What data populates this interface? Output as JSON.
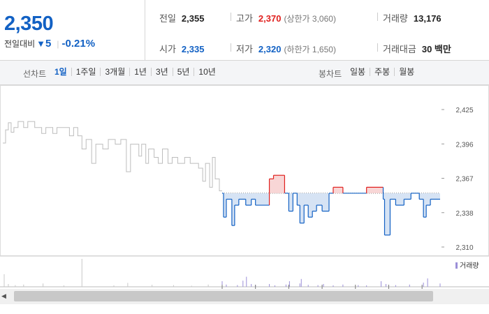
{
  "price": "2,350",
  "change": {
    "label": "전일대비",
    "direction": "down",
    "amount": "5",
    "percent": "-0.21%"
  },
  "stats": {
    "prev_close": {
      "label": "전일",
      "value": "2,355"
    },
    "high": {
      "label": "고가",
      "value": "2,370",
      "limit": "(상한가 3,060)"
    },
    "volume": {
      "label": "거래량",
      "value": "13,176"
    },
    "open": {
      "label": "시가",
      "value": "2,335"
    },
    "low": {
      "label": "저가",
      "value": "2,320",
      "limit": "(하한가 1,650)"
    },
    "turnover": {
      "label": "거래대금",
      "value": "30 백만"
    }
  },
  "line_chart_label": "선차트",
  "line_tabs": [
    "1일",
    "1주일",
    "3개월",
    "1년",
    "3년",
    "5년",
    "10년"
  ],
  "active_tab": "1일",
  "candle_chart_label": "봉차트",
  "candle_tabs": [
    "일봉",
    "주봉",
    "월봉"
  ],
  "volume_legend": "거래량",
  "colors": {
    "up": "#e0201e",
    "down": "#1261c4",
    "past": "#bdbdbd",
    "volume": "#9b8fd8"
  },
  "chart_data": {
    "type": "line",
    "y_ticks": [
      "2,425",
      "2,396",
      "2,367",
      "2,338",
      "2,310"
    ],
    "ylim": [
      2310,
      2425
    ],
    "reference": 2355,
    "xlim": [
      0,
      630
    ],
    "past": [
      [
        0,
        2397
      ],
      [
        4,
        2397
      ],
      [
        4,
        2408
      ],
      [
        8,
        2408
      ],
      [
        8,
        2414
      ],
      [
        12,
        2414
      ],
      [
        12,
        2406
      ],
      [
        16,
        2406
      ],
      [
        16,
        2410
      ],
      [
        22,
        2410
      ],
      [
        22,
        2415
      ],
      [
        30,
        2415
      ],
      [
        30,
        2410
      ],
      [
        36,
        2410
      ],
      [
        36,
        2415
      ],
      [
        46,
        2415
      ],
      [
        46,
        2410
      ],
      [
        56,
        2410
      ],
      [
        56,
        2405
      ],
      [
        62,
        2405
      ],
      [
        62,
        2410
      ],
      [
        72,
        2410
      ],
      [
        72,
        2405
      ],
      [
        78,
        2405
      ],
      [
        78,
        2410
      ],
      [
        96,
        2410
      ],
      [
        96,
        2403
      ],
      [
        102,
        2403
      ],
      [
        102,
        2410
      ],
      [
        108,
        2410
      ],
      [
        108,
        2403
      ],
      [
        114,
        2403
      ],
      [
        114,
        2392
      ],
      [
        120,
        2392
      ],
      [
        120,
        2400
      ],
      [
        128,
        2400
      ],
      [
        128,
        2380
      ],
      [
        134,
        2380
      ],
      [
        134,
        2396
      ],
      [
        144,
        2396
      ],
      [
        144,
        2392
      ],
      [
        152,
        2392
      ],
      [
        152,
        2400
      ],
      [
        162,
        2400
      ],
      [
        162,
        2396
      ],
      [
        170,
        2396
      ],
      [
        170,
        2400
      ],
      [
        178,
        2400
      ],
      [
        178,
        2373
      ],
      [
        184,
        2373
      ],
      [
        184,
        2396
      ],
      [
        196,
        2396
      ],
      [
        196,
        2386
      ],
      [
        200,
        2386
      ],
      [
        200,
        2396
      ],
      [
        206,
        2396
      ],
      [
        206,
        2380
      ],
      [
        210,
        2380
      ],
      [
        210,
        2392
      ],
      [
        218,
        2392
      ],
      [
        218,
        2385
      ],
      [
        224,
        2385
      ],
      [
        224,
        2380
      ],
      [
        230,
        2380
      ],
      [
        230,
        2392
      ],
      [
        238,
        2392
      ],
      [
        238,
        2380
      ],
      [
        244,
        2380
      ],
      [
        244,
        2385
      ],
      [
        252,
        2385
      ],
      [
        252,
        2380
      ],
      [
        262,
        2380
      ],
      [
        262,
        2385
      ],
      [
        270,
        2385
      ],
      [
        270,
        2380
      ],
      [
        282,
        2380
      ],
      [
        282,
        2376
      ],
      [
        288,
        2376
      ],
      [
        288,
        2365
      ],
      [
        292,
        2365
      ],
      [
        292,
        2380
      ],
      [
        298,
        2380
      ],
      [
        298,
        2360
      ],
      [
        302,
        2360
      ],
      [
        302,
        2385
      ],
      [
        306,
        2385
      ],
      [
        306,
        2367
      ],
      [
        312,
        2367
      ],
      [
        312,
        2357
      ],
      [
        316,
        2357
      ]
    ],
    "today": [
      [
        316,
        2355
      ],
      [
        318,
        2355
      ],
      [
        318,
        2335
      ],
      [
        322,
        2335
      ],
      [
        322,
        2350
      ],
      [
        330,
        2350
      ],
      [
        330,
        2328
      ],
      [
        334,
        2328
      ],
      [
        334,
        2345
      ],
      [
        340,
        2345
      ],
      [
        340,
        2350
      ],
      [
        350,
        2350
      ],
      [
        350,
        2345
      ],
      [
        358,
        2345
      ],
      [
        358,
        2350
      ],
      [
        364,
        2350
      ],
      [
        364,
        2345
      ],
      [
        384,
        2345
      ],
      [
        384,
        2367
      ],
      [
        390,
        2367
      ],
      [
        390,
        2370
      ],
      [
        406,
        2370
      ],
      [
        406,
        2355
      ],
      [
        412,
        2355
      ],
      [
        412,
        2340
      ],
      [
        418,
        2340
      ],
      [
        418,
        2355
      ],
      [
        424,
        2355
      ],
      [
        424,
        2345
      ],
      [
        428,
        2345
      ],
      [
        428,
        2330
      ],
      [
        434,
        2330
      ],
      [
        434,
        2345
      ],
      [
        440,
        2345
      ],
      [
        440,
        2335
      ],
      [
        446,
        2335
      ],
      [
        446,
        2340
      ],
      [
        452,
        2340
      ],
      [
        452,
        2345
      ],
      [
        460,
        2345
      ],
      [
        460,
        2340
      ],
      [
        470,
        2340
      ],
      [
        470,
        2355
      ],
      [
        476,
        2355
      ],
      [
        476,
        2360
      ],
      [
        490,
        2360
      ],
      [
        490,
        2355
      ],
      [
        524,
        2355
      ],
      [
        524,
        2360
      ],
      [
        548,
        2360
      ],
      [
        548,
        2350
      ],
      [
        550,
        2350
      ],
      [
        550,
        2320
      ],
      [
        558,
        2320
      ],
      [
        558,
        2350
      ],
      [
        566,
        2350
      ],
      [
        566,
        2345
      ],
      [
        578,
        2345
      ],
      [
        578,
        2350
      ],
      [
        588,
        2350
      ],
      [
        588,
        2355
      ],
      [
        600,
        2355
      ],
      [
        600,
        2350
      ],
      [
        606,
        2350
      ],
      [
        606,
        2335
      ],
      [
        610,
        2335
      ],
      [
        610,
        2345
      ],
      [
        616,
        2345
      ],
      [
        616,
        2350
      ],
      [
        630,
        2350
      ]
    ],
    "volume_bars": [
      [
        2,
        0.45
      ],
      [
        8,
        0.1
      ],
      [
        18,
        0.06
      ],
      [
        30,
        0.08
      ],
      [
        58,
        0.12
      ],
      [
        88,
        0.05
      ],
      [
        114,
        1.0
      ],
      [
        160,
        0.05
      ],
      [
        180,
        0.14
      ],
      [
        215,
        0.07
      ],
      [
        246,
        0.06
      ],
      [
        272,
        0.04
      ],
      [
        296,
        0.08
      ],
      [
        316,
        0.2
      ],
      [
        322,
        0.08
      ],
      [
        338,
        0.06
      ],
      [
        346,
        0.22
      ],
      [
        351,
        0.36
      ],
      [
        358,
        0.1
      ],
      [
        364,
        0.06
      ],
      [
        384,
        0.1
      ],
      [
        392,
        0.05
      ],
      [
        408,
        0.08
      ],
      [
        413,
        0.2
      ],
      [
        428,
        0.12
      ],
      [
        430,
        0.28
      ],
      [
        440,
        0.07
      ],
      [
        454,
        0.06
      ],
      [
        462,
        0.1
      ],
      [
        476,
        0.05
      ],
      [
        490,
        0.08
      ],
      [
        512,
        0.06
      ],
      [
        524,
        0.05
      ],
      [
        545,
        0.2
      ],
      [
        552,
        0.1
      ],
      [
        566,
        0.06
      ],
      [
        586,
        0.08
      ],
      [
        606,
        0.15
      ],
      [
        612,
        0.3
      ],
      [
        630,
        0.12
      ]
    ]
  }
}
